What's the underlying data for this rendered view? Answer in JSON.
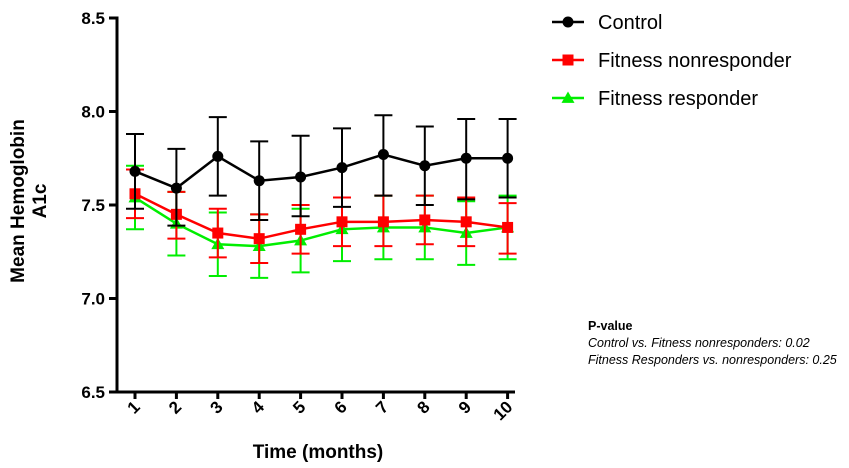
{
  "chart_data": {
    "type": "line",
    "xlabel": "Time (months)",
    "ylabel_lines": [
      "Mean Hemoglobin",
      "A1c"
    ],
    "ylim": [
      6.5,
      8.5
    ],
    "yticks": [
      "6.5",
      "7.0",
      "7.5",
      "8.0",
      "8.5"
    ],
    "x": [
      "1",
      "2",
      "3",
      "4",
      "5",
      "6",
      "7",
      "8",
      "9",
      "10"
    ],
    "grid": false,
    "legend_position": "top-right",
    "series": [
      {
        "name": "Control",
        "color": "#000000",
        "marker": "circle",
        "values": [
          7.68,
          7.59,
          7.76,
          7.63,
          7.65,
          7.7,
          7.77,
          7.71,
          7.75,
          7.75
        ],
        "err_upper": [
          7.88,
          7.8,
          7.97,
          7.84,
          7.87,
          7.91,
          7.98,
          7.92,
          7.96,
          7.96
        ],
        "err_lower": [
          7.48,
          7.39,
          7.55,
          7.42,
          7.44,
          7.49,
          7.55,
          7.5,
          7.53,
          7.54
        ]
      },
      {
        "name": "Fitness nonresponder",
        "color": "#ff0000",
        "marker": "square",
        "values": [
          7.56,
          7.45,
          7.35,
          7.32,
          7.37,
          7.41,
          7.41,
          7.42,
          7.41,
          7.38
        ],
        "err_upper": [
          7.69,
          7.57,
          7.48,
          7.45,
          7.5,
          7.54,
          7.55,
          7.55,
          7.54,
          7.51
        ],
        "err_lower": [
          7.43,
          7.32,
          7.22,
          7.19,
          7.24,
          7.28,
          7.28,
          7.29,
          7.28,
          7.24
        ]
      },
      {
        "name": "Fitness responder",
        "color": "#00ee00",
        "marker": "triangle",
        "values": [
          7.54,
          7.4,
          7.29,
          7.28,
          7.31,
          7.37,
          7.38,
          7.38,
          7.35,
          7.38
        ],
        "err_upper": [
          7.71,
          7.57,
          7.46,
          7.45,
          7.48,
          7.54,
          7.55,
          7.55,
          7.52,
          7.55
        ],
        "err_lower": [
          7.37,
          7.23,
          7.12,
          7.11,
          7.14,
          7.2,
          7.21,
          7.21,
          7.18,
          7.21
        ]
      }
    ],
    "annotation": {
      "title": "P-value",
      "lines": [
        "Control vs. Fitness nonresponders: 0.02",
        "Fitness Responders vs. nonresponders: 0.25"
      ]
    }
  }
}
